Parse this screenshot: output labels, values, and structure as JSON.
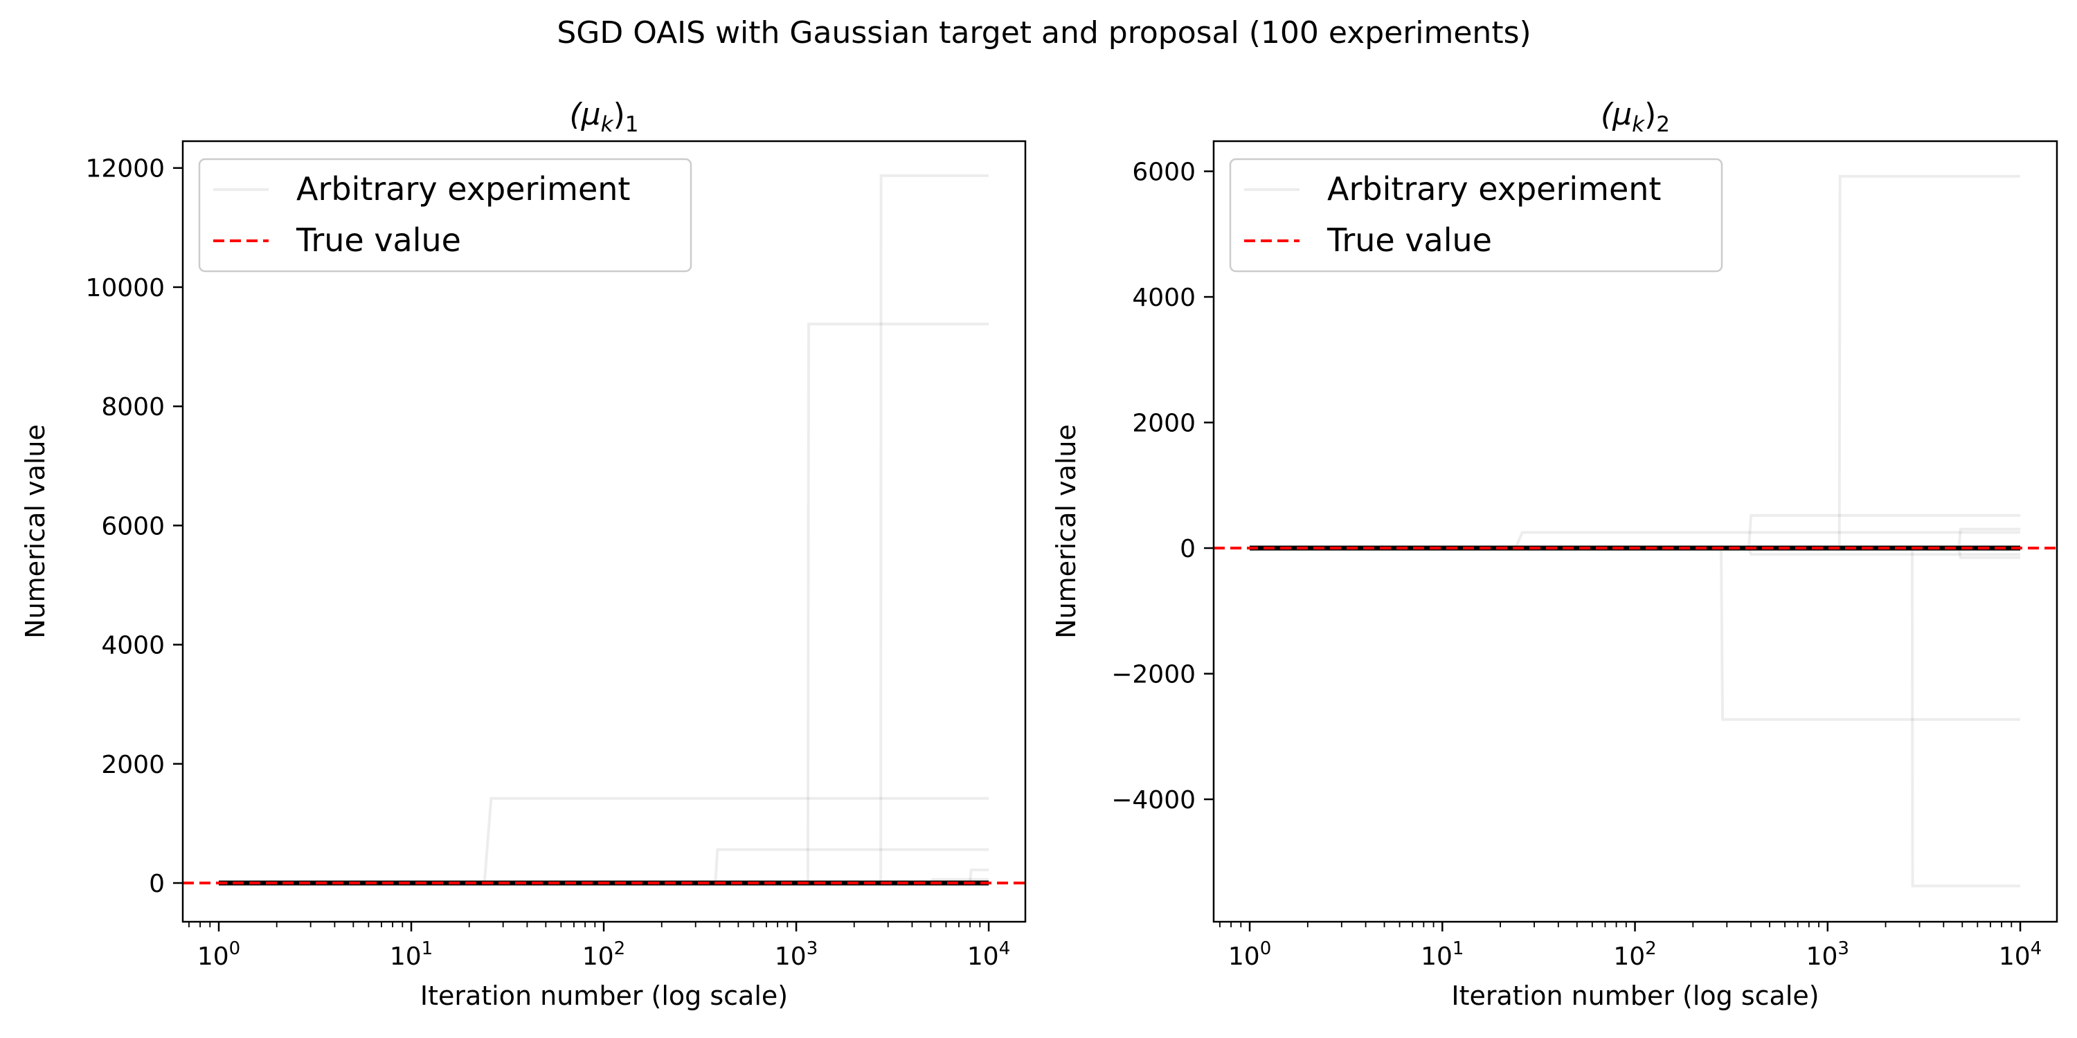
{
  "figure": {
    "suptitle": "SGD OAIS with Gaussian target and proposal (100 experiments)"
  },
  "legend_labels": [
    "Arbitrary experiment",
    "True value"
  ],
  "colors": {
    "experiment": "#000000",
    "true_value": "#ff0000",
    "mean_line": "#000000",
    "axes": "#000000"
  },
  "chart_data": [
    {
      "type": "line",
      "title": "(μ_k)_1",
      "title_parts": {
        "base": "(μ",
        "sub1": "k",
        "close": ")",
        "sub2": "1"
      },
      "xlabel": "Iteration number (log scale)",
      "ylabel": "Numerical value",
      "xscale": "log",
      "xlim": [
        0.65,
        15500
      ],
      "ylim": [
        -650,
        12450
      ],
      "x_major_ticks": [
        1,
        10,
        100,
        1000,
        10000
      ],
      "x_tick_base": "10",
      "x_tick_exponents": [
        "0",
        "1",
        "2",
        "3",
        "4"
      ],
      "y_ticks": [
        0,
        2000,
        4000,
        6000,
        8000,
        10000,
        12000
      ],
      "y_tick_labels": [
        "0",
        "2000",
        "4000",
        "6000",
        "8000",
        "10000",
        "12000"
      ],
      "legend_position": "upper-left",
      "grid": false,
      "true_value": 0,
      "experiments": [
        {
          "x": [
            1,
            24,
            26,
            10000
          ],
          "y": [
            0,
            0,
            1420,
            1420
          ]
        },
        {
          "x": [
            1,
            380,
            390,
            10000
          ],
          "y": [
            0,
            0,
            560,
            560
          ]
        },
        {
          "x": [
            1,
            1150,
            1160,
            10000
          ],
          "y": [
            0,
            0,
            9380,
            9380
          ]
        },
        {
          "x": [
            1,
            2750,
            2760,
            10000
          ],
          "y": [
            0,
            0,
            11870,
            11870
          ]
        },
        {
          "x": [
            1,
            8000,
            8100,
            10000
          ],
          "y": [
            0,
            0,
            220,
            220
          ]
        },
        {
          "x": [
            1,
            5000,
            5100,
            10000
          ],
          "y": [
            0,
            0,
            60,
            60
          ]
        }
      ]
    },
    {
      "type": "line",
      "title": "(μ_k)_2",
      "title_parts": {
        "base": "(μ",
        "sub1": "k",
        "close": ")",
        "sub2": "2"
      },
      "xlabel": "Iteration number (log scale)",
      "ylabel": "Numerical value",
      "xscale": "log",
      "xlim": [
        0.65,
        15500
      ],
      "ylim": [
        -5950,
        6480
      ],
      "x_major_ticks": [
        1,
        10,
        100,
        1000,
        10000
      ],
      "x_tick_base": "10",
      "x_tick_exponents": [
        "0",
        "1",
        "2",
        "3",
        "4"
      ],
      "y_ticks": [
        -4000,
        -2000,
        0,
        2000,
        4000,
        6000
      ],
      "y_tick_labels": [
        "−4000",
        "−2000",
        "0",
        "2000",
        "4000",
        "6000"
      ],
      "legend_position": "upper-left",
      "grid": false,
      "true_value": 0,
      "experiments": [
        {
          "x": [
            1,
            24,
            26,
            10000
          ],
          "y": [
            0,
            0,
            250,
            250
          ]
        },
        {
          "x": [
            1,
            280,
            285,
            10000
          ],
          "y": [
            0,
            0,
            -2730,
            -2730
          ]
        },
        {
          "x": [
            1,
            390,
            400,
            10000
          ],
          "y": [
            0,
            0,
            520,
            520
          ]
        },
        {
          "x": [
            1,
            390,
            400,
            10000
          ],
          "y": [
            0,
            0,
            -100,
            -100
          ]
        },
        {
          "x": [
            1,
            1150,
            1160,
            10000
          ],
          "y": [
            0,
            0,
            5920,
            5920
          ]
        },
        {
          "x": [
            1,
            2750,
            2760,
            10000
          ],
          "y": [
            0,
            0,
            -5380,
            -5380
          ]
        },
        {
          "x": [
            1,
            4800,
            4900,
            10000
          ],
          "y": [
            0,
            0,
            300,
            300
          ]
        },
        {
          "x": [
            1,
            4800,
            4900,
            10000
          ],
          "y": [
            0,
            0,
            -150,
            -150
          ]
        }
      ]
    }
  ]
}
